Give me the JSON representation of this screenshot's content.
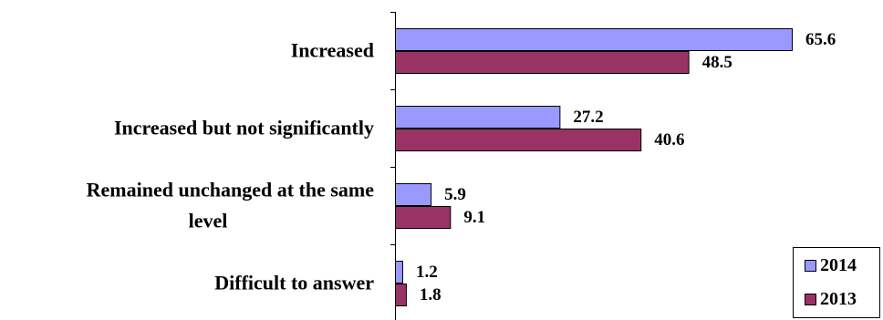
{
  "chart_data": {
    "type": "bar",
    "orientation": "horizontal",
    "categories": [
      [
        "Increased"
      ],
      [
        "Increased but not significantly"
      ],
      [
        "Remained unchanged at the same",
        "level"
      ],
      [
        "Difficult to answer"
      ]
    ],
    "series": [
      {
        "name": "2014",
        "values": [
          65.6,
          27.2,
          5.9,
          1.2
        ],
        "color": "#9999ff"
      },
      {
        "name": "2013",
        "values": [
          48.5,
          40.6,
          9.1,
          1.8
        ],
        "color": "#993366"
      }
    ],
    "xlim": [
      0,
      70
    ],
    "grid": false,
    "legend_position": "bottom-right",
    "title": "",
    "xlabel": "",
    "ylabel": ""
  }
}
